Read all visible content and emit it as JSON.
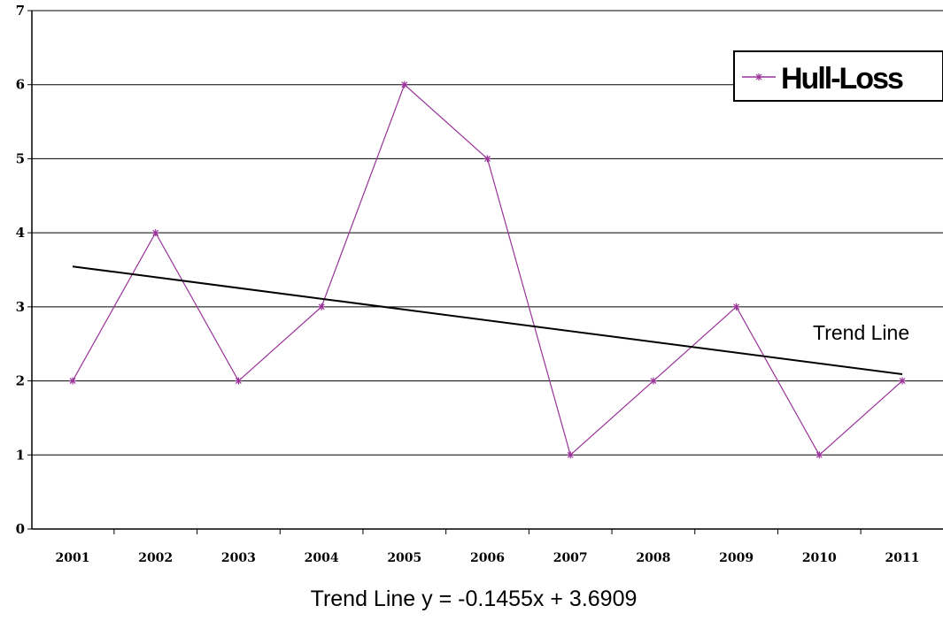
{
  "chart_data": {
    "type": "line",
    "categories": [
      "2001",
      "2002",
      "2003",
      "2004",
      "2005",
      "2006",
      "2007",
      "2008",
      "2009",
      "2010",
      "2011"
    ],
    "series": [
      {
        "name": "Hull-Loss",
        "values": [
          2,
          4,
          2,
          3,
          6,
          5,
          1,
          2,
          3,
          1,
          2
        ],
        "color": "#993399",
        "marker": "asterisk"
      }
    ],
    "trendline": {
      "label": "Trend Line",
      "equation": "Trend Line y = -0.1455x + 3.6909",
      "slope": -0.1455,
      "intercept": 3.6909,
      "color": "#000000"
    },
    "ylim": [
      0,
      7
    ],
    "yticks": [
      "0",
      "1",
      "2",
      "3",
      "4",
      "5",
      "6",
      "7"
    ],
    "grid": "horizontal",
    "legend_position": "top-right"
  }
}
